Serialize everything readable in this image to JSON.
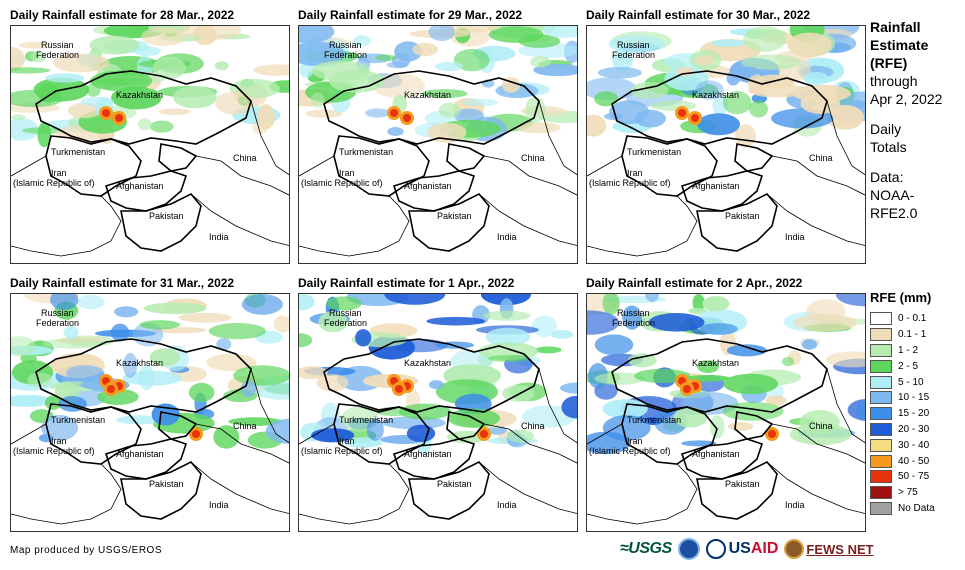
{
  "panels": [
    {
      "title": "Daily Rainfall estimate for 28 Mar., 2022",
      "variant": 0
    },
    {
      "title": "Daily Rainfall estimate for 29 Mar., 2022",
      "variant": 1
    },
    {
      "title": "Daily Rainfall estimate for 30 Mar., 2022",
      "variant": 2
    },
    {
      "title": "Daily Rainfall estimate for 31 Mar., 2022",
      "variant": 3
    },
    {
      "title": "Daily Rainfall estimate for 1 Apr., 2022",
      "variant": 4
    },
    {
      "title": "Daily Rainfall estimate for 2 Apr., 2022",
      "variant": 5
    }
  ],
  "map_labels": {
    "russia_1": "Russian",
    "russia_2": "Federation",
    "kazakhstan": "Kazakhstan",
    "turkmenistan": "Turkmenistan",
    "china": "China",
    "iran_1": "Iran",
    "iran_2": "(Islamic Republic of)",
    "afghanistan": "Afghanistan",
    "pakistan": "Pakistan",
    "india": "India"
  },
  "side": {
    "line1": "Rainfall",
    "line2": "Estimate",
    "line3": "(RFE)",
    "line4": "through",
    "line5": "Apr 2, 2022",
    "line6": "Daily",
    "line7": "Totals",
    "line8": "Data:",
    "line9": "NOAA-",
    "line10": "RFE2.0"
  },
  "legend": {
    "title": "RFE (mm)",
    "items": [
      {
        "label": "0 - 0.1",
        "color": "#ffffff"
      },
      {
        "label": "0.1 - 1",
        "color": "#f0dcb8"
      },
      {
        "label": "1 - 2",
        "color": "#b4ecb0"
      },
      {
        "label": "2 - 5",
        "color": "#5cd65c"
      },
      {
        "label": "5 - 10",
        "color": "#b0eef6"
      },
      {
        "label": "10 - 15",
        "color": "#7eb8f0"
      },
      {
        "label": "15 - 20",
        "color": "#3c8ee8"
      },
      {
        "label": "20 - 30",
        "color": "#1e5cd8"
      },
      {
        "label": "30 - 40",
        "color": "#f6dc80"
      },
      {
        "label": "40 - 50",
        "color": "#f59a1c"
      },
      {
        "label": "50 - 75",
        "color": "#e8320c"
      },
      {
        "label": "> 75",
        "color": "#a01010"
      },
      {
        "label": "No Data",
        "color": "#a0a0a0"
      }
    ]
  },
  "credit": "Map produced by USGS/EROS",
  "logos": {
    "usgs": "≈USGS",
    "usaid_a": "US",
    "usaid_b": "AID",
    "fews": "FEWS NET"
  }
}
